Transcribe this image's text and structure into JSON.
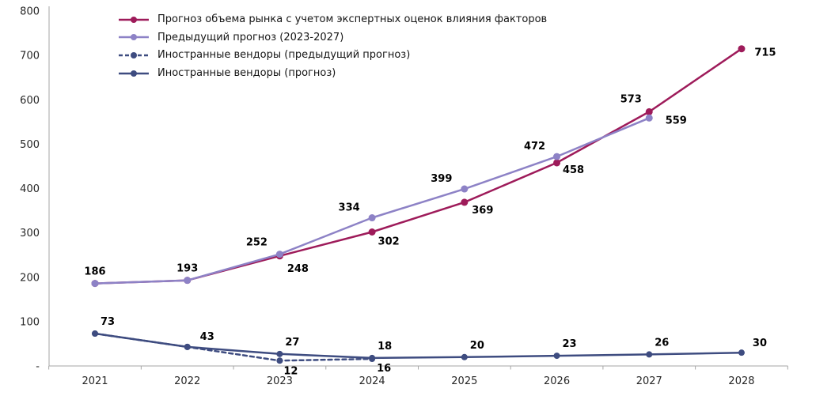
{
  "chart_data": {
    "type": "line",
    "title": "",
    "categories": [
      "2021",
      "2022",
      "2023",
      "2024",
      "2025",
      "2026",
      "2027",
      "2028"
    ],
    "y_axis": {
      "min": 0,
      "max": 800,
      "step": 100,
      "tick_labels": [
        "-",
        "100",
        "200",
        "300",
        "400",
        "500",
        "600",
        "700",
        "800"
      ]
    },
    "grid": false,
    "legend_position": "top-left",
    "series": [
      {
        "name": "Прогноз объема рынка с учетом экспертных оценок влияния факторов",
        "color": "#9E1B5A",
        "line_style": "solid",
        "marker": "circle",
        "values": [
          186,
          193,
          248,
          302,
          369,
          458,
          573,
          715
        ]
      },
      {
        "name": "Предыдущий прогноз (2023-2027)",
        "color": "#8D82C6",
        "line_style": "solid",
        "marker": "circle",
        "values": [
          186,
          193,
          252,
          334,
          399,
          472,
          559
        ]
      },
      {
        "name": "Иностранные вендоры (предыдущий прогноз)",
        "color": "#3E4C80",
        "line_style": "dashed",
        "marker": "circle",
        "values": [
          73,
          43,
          12,
          16
        ]
      },
      {
        "name": "Иностранные вендоры (прогноз)",
        "color": "#3E4C80",
        "line_style": "solid",
        "marker": "circle",
        "values": [
          73,
          43,
          27,
          18,
          20,
          23,
          26,
          30
        ]
      }
    ]
  }
}
